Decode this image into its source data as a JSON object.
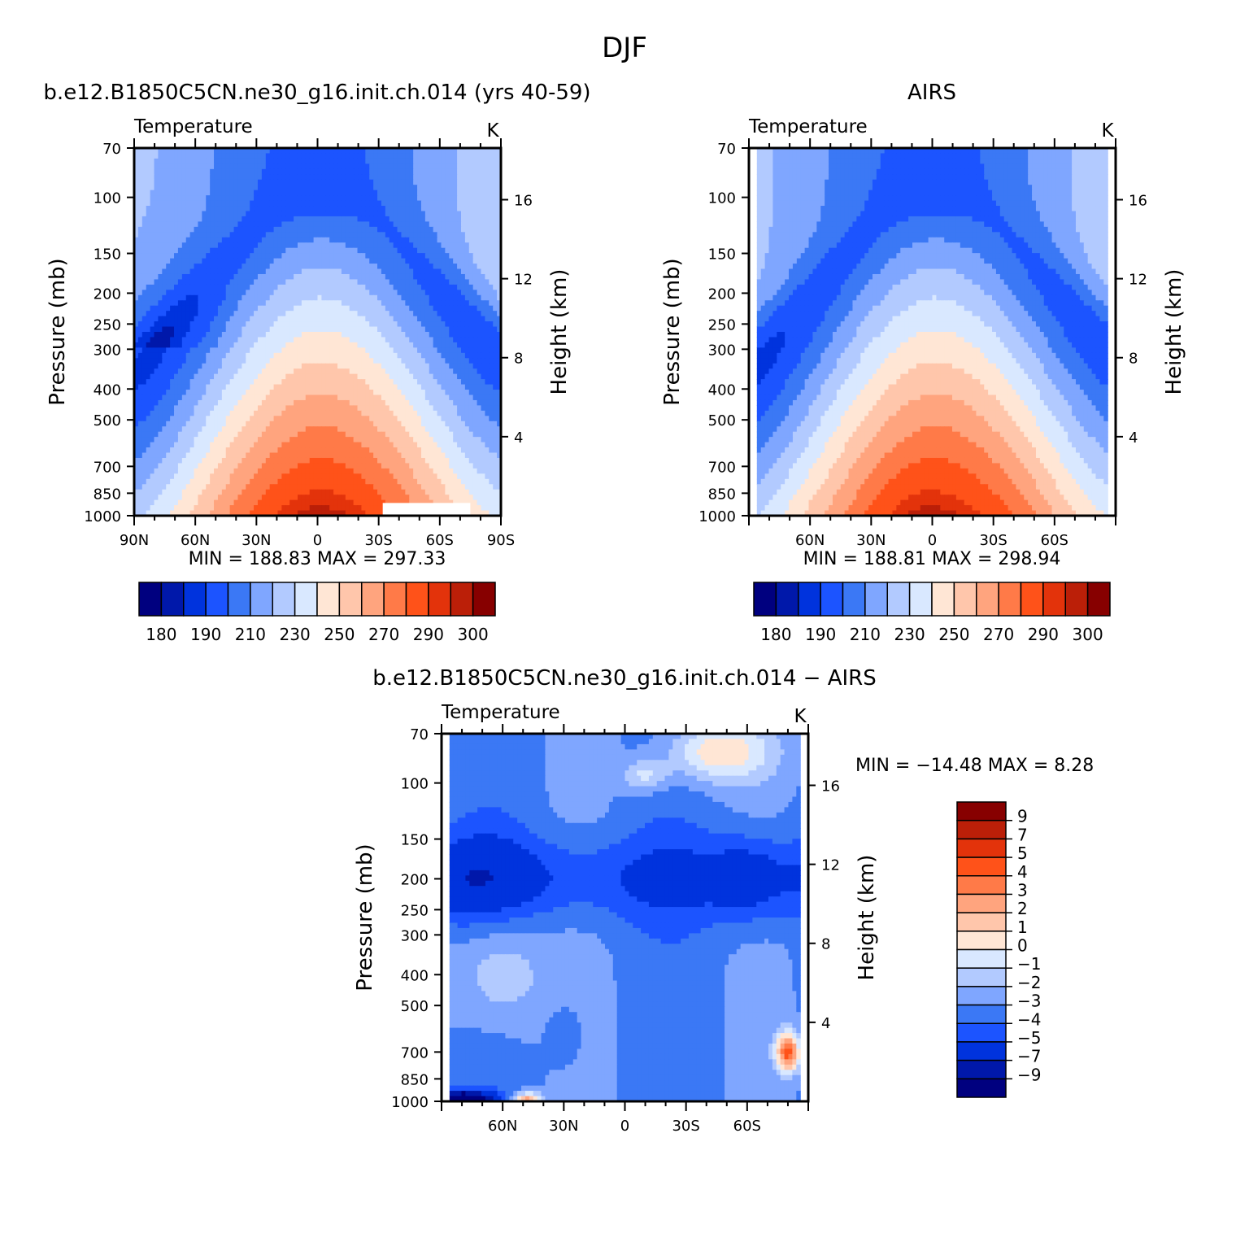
{
  "figure": {
    "title": "DJF",
    "colors": {
      "temp_palette": [
        "#00007f",
        "#0018aa",
        "#0033dd",
        "#1c54ff",
        "#3b78f5",
        "#7fa6ff",
        "#b2caff",
        "#d9e8ff",
        "#ffe6d5",
        "#ffc6ab",
        "#ffa47e",
        "#ff7a48",
        "#ff5219",
        "#e3330b",
        "#bb1f08",
        "#870000"
      ],
      "diff_palette": [
        "#00007f",
        "#0018aa",
        "#0033dd",
        "#1c54ff",
        "#3b78f5",
        "#7fa6ff",
        "#b2caff",
        "#d9e8ff",
        "#ffe6d5",
        "#ffc6ab",
        "#ffa47e",
        "#ff7a48",
        "#ff5219",
        "#e3330b",
        "#bb1f08",
        "#870000"
      ]
    }
  },
  "chart_data": [
    {
      "id": "model",
      "type": "heatmap",
      "title": "b.e12.B1850C5CN.ne30_g16.init.ch.014 (yrs 40-59)",
      "subtitle_left": "Temperature",
      "units": "K",
      "ylabel": "Pressure (mb)",
      "y2label": "Height (km)",
      "x_ticks": [
        "90N",
        "60N",
        "30N",
        "0",
        "30S",
        "60S",
        "90S"
      ],
      "y_ticks": [
        "70",
        "100",
        "150",
        "200",
        "250",
        "300",
        "400",
        "500",
        "700",
        "850",
        "1000"
      ],
      "y2_ticks": [
        "16",
        "12",
        "8",
        "4"
      ],
      "x_range": [
        90,
        -90
      ],
      "y_range": [
        70,
        1000
      ],
      "stats": "MIN =  188.83   MAX =  297.33",
      "min": 188.83,
      "max": 297.33,
      "colorbar_labels": [
        "180",
        "190",
        "210",
        "230",
        "250",
        "270",
        "290",
        "300"
      ],
      "levels": [
        180,
        185,
        190,
        200,
        210,
        220,
        230,
        240,
        250,
        260,
        270,
        280,
        290,
        295,
        300
      ]
    },
    {
      "id": "obs",
      "type": "heatmap",
      "title": "AIRS",
      "subtitle_left": "Temperature",
      "units": "K",
      "ylabel": "Pressure (mb)",
      "y2label": "Height (km)",
      "x_ticks": [
        "60N",
        "30N",
        "0",
        "30S",
        "60S"
      ],
      "y_ticks": [
        "70",
        "100",
        "150",
        "200",
        "250",
        "300",
        "400",
        "500",
        "700",
        "850",
        "1000"
      ],
      "y2_ticks": [
        "16",
        "12",
        "8",
        "4"
      ],
      "x_range": [
        90,
        -90
      ],
      "y_range": [
        70,
        1000
      ],
      "stats": "MIN =  188.81   MAX =  298.94",
      "min": 188.81,
      "max": 298.94,
      "colorbar_labels": [
        "180",
        "190",
        "210",
        "230",
        "250",
        "270",
        "290",
        "300"
      ],
      "levels": [
        180,
        185,
        190,
        200,
        210,
        220,
        230,
        240,
        250,
        260,
        270,
        280,
        290,
        295,
        300
      ]
    },
    {
      "id": "diff",
      "type": "heatmap",
      "title": "b.e12.B1850C5CN.ne30_g16.init.ch.014 − AIRS",
      "subtitle_left": "Temperature",
      "units": "K",
      "ylabel": "Pressure (mb)",
      "y2label": "Height (km)",
      "x_ticks": [
        "60N",
        "30N",
        "0",
        "30S",
        "60S"
      ],
      "y_ticks": [
        "70",
        "100",
        "150",
        "200",
        "250",
        "300",
        "400",
        "500",
        "700",
        "850",
        "1000"
      ],
      "y2_ticks": [
        "16",
        "12",
        "8",
        "4"
      ],
      "x_range": [
        90,
        -90
      ],
      "y_range": [
        70,
        1000
      ],
      "stats": "MIN = −14.48   MAX =     8.28",
      "min": -14.48,
      "max": 8.28,
      "colorbar_labels": [
        "9",
        "7",
        "5",
        "4",
        "3",
        "2",
        "1",
        "0",
        "−1",
        "−2",
        "−3",
        "−4",
        "−5",
        "−7",
        "−9"
      ],
      "levels": [
        -9,
        -7,
        -5,
        -4,
        -3,
        -2,
        -1,
        0,
        1,
        2,
        3,
        4,
        5,
        7,
        9
      ]
    }
  ]
}
